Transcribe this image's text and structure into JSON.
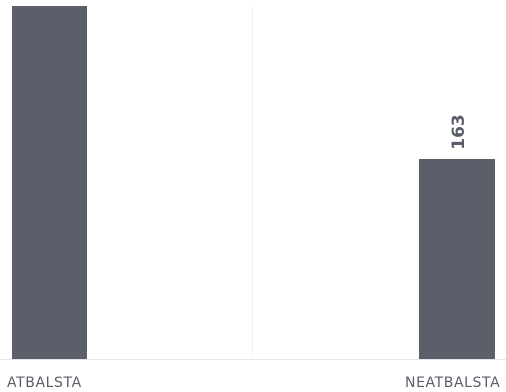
{
  "colors": {
    "bar": "#5b5f69",
    "axis": "#e6e6e6",
    "grid": "#f0f0f0",
    "text": "#5a5e68"
  },
  "chart_data": {
    "type": "bar",
    "categories": [
      "ATBALSTA",
      "NEATBALSTA"
    ],
    "values": [
      null,
      163
    ],
    "value_labels": [
      "",
      "163"
    ],
    "title": "",
    "xlabel": "",
    "ylabel": "",
    "grid": true,
    "legend": "none"
  }
}
